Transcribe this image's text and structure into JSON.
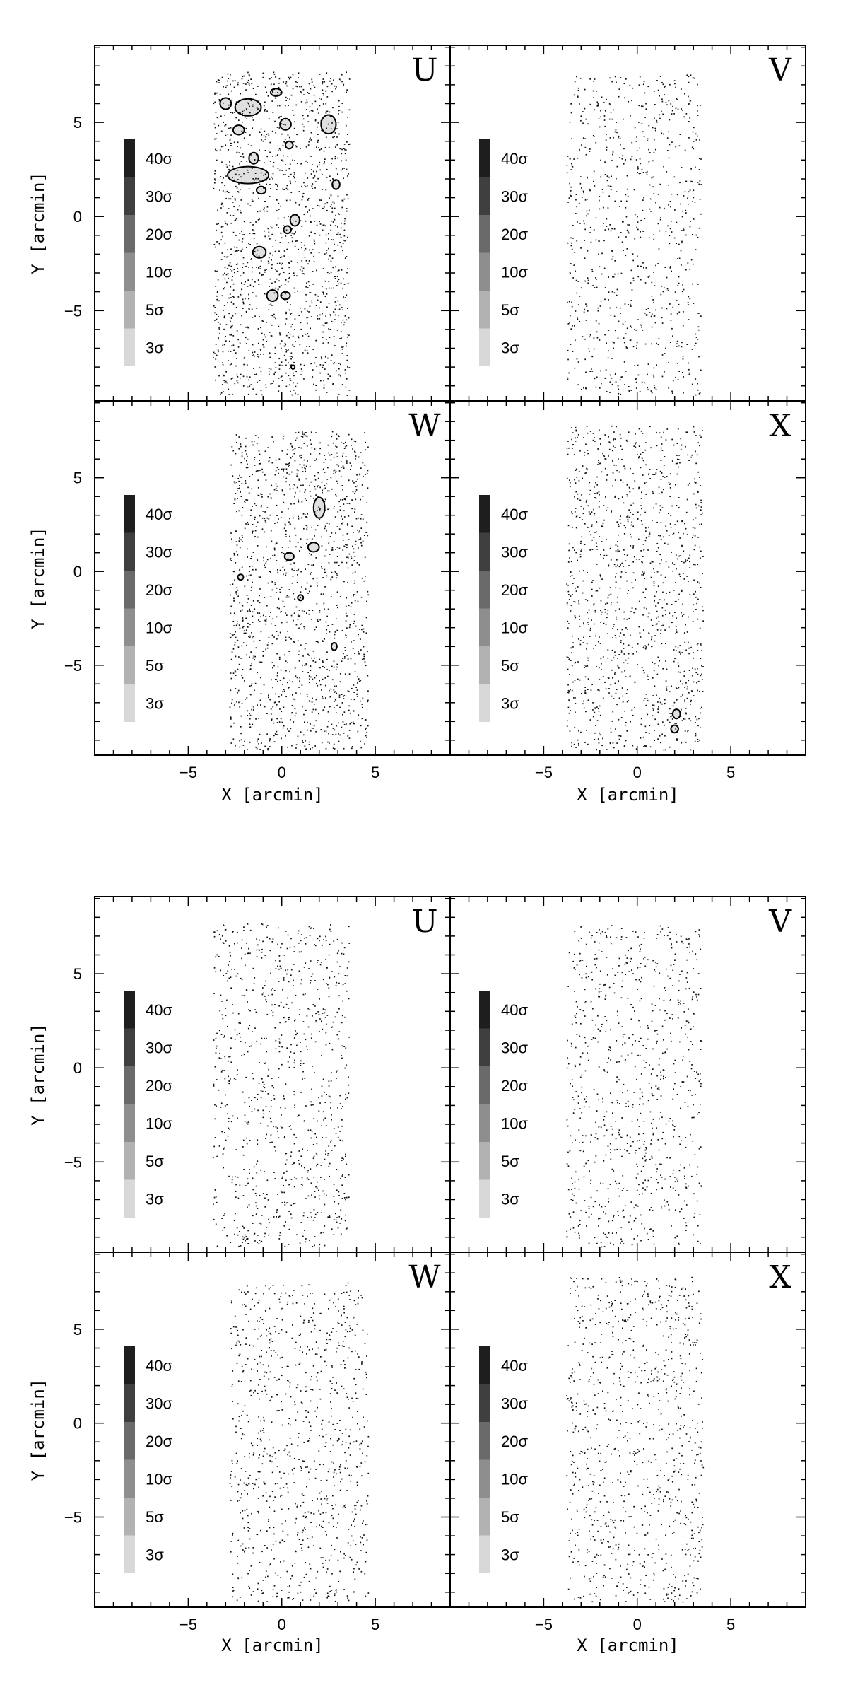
{
  "chart_data": [
    {
      "type": "scatter",
      "figure": "top",
      "xlabel": "X [arcmin]",
      "ylabel": "Y [arcmin]",
      "xlim": [
        -10,
        9
      ],
      "ylim": [
        -9.8,
        9.1
      ],
      "x_ticks": [
        -5,
        0,
        5
      ],
      "y_ticks": [
        -5,
        0,
        5
      ],
      "legend": {
        "placement": "left",
        "levels": [
          {
            "label": "40σ",
            "color": "#1e1e1e"
          },
          {
            "label": "30σ",
            "color": "#3f3f3f"
          },
          {
            "label": "20σ",
            "color": "#6a6a6a"
          },
          {
            "label": "10σ",
            "color": "#8e8e8e"
          },
          {
            "label": "5σ",
            "color": "#b2b2b2"
          },
          {
            "label": "3σ",
            "color": "#d8d8d8"
          }
        ]
      },
      "panels": [
        {
          "name": "U",
          "field_x": [
            -3.7,
            3.6
          ],
          "field_y": [
            -9.5,
            7.7
          ],
          "density": 1.0,
          "contours": [
            {
              "x": -1.8,
              "y": 5.8,
              "rx": 0.7,
              "ry": 0.45
            },
            {
              "x": -3.0,
              "y": 6.0,
              "rx": 0.3,
              "ry": 0.3
            },
            {
              "x": -2.3,
              "y": 4.6,
              "rx": 0.3,
              "ry": 0.25
            },
            {
              "x": -0.3,
              "y": 6.6,
              "rx": 0.3,
              "ry": 0.2
            },
            {
              "x": 0.2,
              "y": 4.9,
              "rx": 0.3,
              "ry": 0.3
            },
            {
              "x": 2.5,
              "y": 4.9,
              "rx": 0.4,
              "ry": 0.5
            },
            {
              "x": 0.4,
              "y": 3.8,
              "rx": 0.2,
              "ry": 0.2
            },
            {
              "x": -1.5,
              "y": 3.1,
              "rx": 0.25,
              "ry": 0.3
            },
            {
              "x": -1.8,
              "y": 2.2,
              "rx": 1.1,
              "ry": 0.45
            },
            {
              "x": -1.1,
              "y": 1.4,
              "rx": 0.25,
              "ry": 0.2
            },
            {
              "x": 2.9,
              "y": 1.7,
              "rx": 0.2,
              "ry": 0.25
            },
            {
              "x": 0.7,
              "y": -0.2,
              "rx": 0.25,
              "ry": 0.3
            },
            {
              "x": 0.3,
              "y": -0.7,
              "rx": 0.2,
              "ry": 0.2
            },
            {
              "x": -1.2,
              "y": -1.9,
              "rx": 0.35,
              "ry": 0.3
            },
            {
              "x": -0.5,
              "y": -4.2,
              "rx": 0.3,
              "ry": 0.3
            },
            {
              "x": 0.2,
              "y": -4.2,
              "rx": 0.25,
              "ry": 0.2
            },
            {
              "x": 0.6,
              "y": -8.0,
              "rx": 0.1,
              "ry": 0.1
            }
          ]
        },
        {
          "name": "V",
          "field_x": [
            -3.8,
            3.4
          ],
          "field_y": [
            -9.5,
            7.6
          ],
          "density": 0.55,
          "contours": []
        },
        {
          "name": "W",
          "field_x": [
            -2.8,
            4.6
          ],
          "field_y": [
            -9.5,
            7.5
          ],
          "density": 0.95,
          "contours": [
            {
              "x": 2.0,
              "y": 3.4,
              "rx": 0.3,
              "ry": 0.55
            },
            {
              "x": 0.4,
              "y": 0.8,
              "rx": 0.25,
              "ry": 0.2
            },
            {
              "x": 1.7,
              "y": 1.3,
              "rx": 0.3,
              "ry": 0.25
            },
            {
              "x": -2.2,
              "y": -0.3,
              "rx": 0.15,
              "ry": 0.15
            },
            {
              "x": 1.0,
              "y": -1.4,
              "rx": 0.15,
              "ry": 0.15
            },
            {
              "x": 2.8,
              "y": -4.0,
              "rx": 0.15,
              "ry": 0.2
            }
          ]
        },
        {
          "name": "X",
          "field_x": [
            -3.8,
            3.5
          ],
          "field_y": [
            -9.5,
            7.8
          ],
          "density": 0.8,
          "contours": [
            {
              "x": 2.1,
              "y": -7.6,
              "rx": 0.2,
              "ry": 0.25
            },
            {
              "x": 2.0,
              "y": -8.4,
              "rx": 0.2,
              "ry": 0.2
            }
          ]
        }
      ]
    },
    {
      "type": "scatter",
      "figure": "bottom",
      "xlabel": "X [arcmin]",
      "ylabel": "Y [arcmin]",
      "xlim": [
        -10,
        9
      ],
      "ylim": [
        -9.8,
        9.1
      ],
      "x_ticks": [
        -5,
        0,
        5
      ],
      "y_ticks": [
        -5,
        0,
        5
      ],
      "legend": {
        "placement": "left",
        "levels": [
          {
            "label": "40σ",
            "color": "#1e1e1e"
          },
          {
            "label": "30σ",
            "color": "#3f3f3f"
          },
          {
            "label": "20σ",
            "color": "#6a6a6a"
          },
          {
            "label": "10σ",
            "color": "#8e8e8e"
          },
          {
            "label": "5σ",
            "color": "#b2b2b2"
          },
          {
            "label": "3σ",
            "color": "#d8d8d8"
          }
        ]
      },
      "panels": [
        {
          "name": "U",
          "field_x": [
            -3.7,
            3.6
          ],
          "field_y": [
            -9.5,
            7.7
          ],
          "density": 0.6,
          "contours": []
        },
        {
          "name": "V",
          "field_x": [
            -3.8,
            3.4
          ],
          "field_y": [
            -9.5,
            7.6
          ],
          "density": 0.55,
          "contours": []
        },
        {
          "name": "W",
          "field_x": [
            -2.8,
            4.6
          ],
          "field_y": [
            -9.5,
            7.5
          ],
          "density": 0.6,
          "contours": []
        },
        {
          "name": "X",
          "field_x": [
            -3.8,
            3.5
          ],
          "field_y": [
            -9.5,
            7.8
          ],
          "density": 0.6,
          "contours": []
        }
      ]
    }
  ]
}
